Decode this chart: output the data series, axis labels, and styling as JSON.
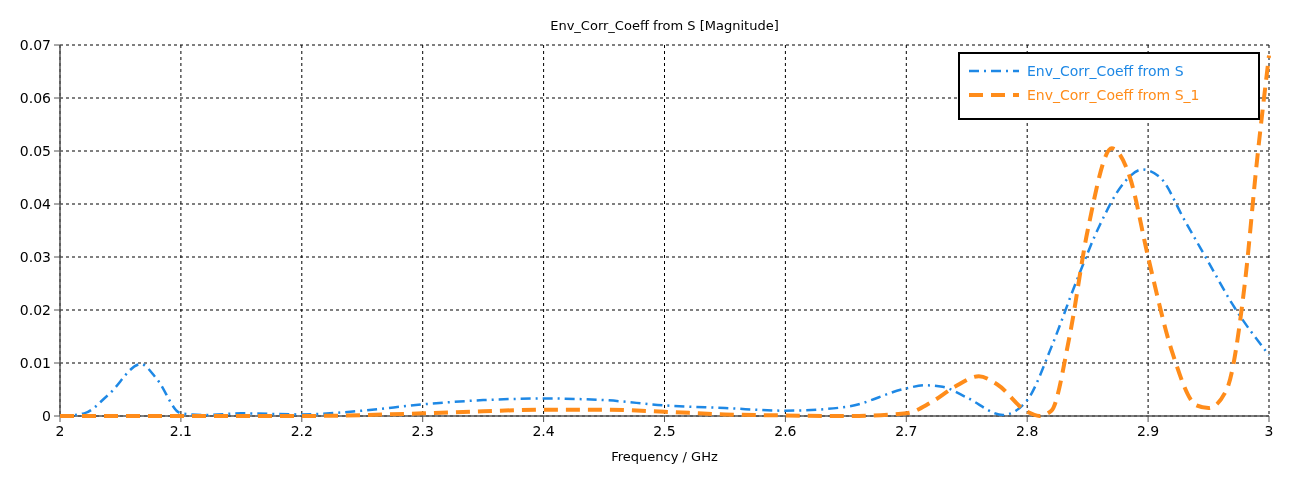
{
  "chart_data": {
    "type": "line",
    "title": "Env_Corr_Coeff from S [Magnitude]",
    "xlabel": "Frequency / GHz",
    "xlim": [
      2,
      3
    ],
    "xticks": [
      2,
      2.1,
      2.2,
      2.3,
      2.4,
      2.5,
      2.6,
      2.7,
      2.8,
      2.9,
      3
    ],
    "ylim": [
      0,
      0.07
    ],
    "yticks": [
      0,
      0.01,
      0.02,
      0.03,
      0.04,
      0.05,
      0.06,
      0.07
    ],
    "grid": true,
    "legend": "top right",
    "series": [
      {
        "name": "Env_Corr_Coeff from S",
        "color": "#1e88e5",
        "line_style": "dashdot",
        "x": [
          2,
          2.02,
          2.04,
          2.067,
          2.08,
          2.1,
          2.12,
          2.15,
          2.2,
          2.25,
          2.3,
          2.35,
          2.4,
          2.45,
          2.5,
          2.55,
          2.6,
          2.65,
          2.7,
          2.715,
          2.73,
          2.75,
          2.78,
          2.8,
          2.82,
          2.84,
          2.86,
          2.88,
          2.895,
          2.91,
          2.93,
          2.95,
          2.97,
          3
        ],
        "values": [
          0,
          0.0005,
          0.004,
          0.0098,
          0.007,
          0.0005,
          0.0002,
          0.0005,
          0.0003,
          0.001,
          0.0022,
          0.003,
          0.0033,
          0.003,
          0.002,
          0.0015,
          0.001,
          0.0017,
          0.0052,
          0.0058,
          0.0055,
          0.0035,
          0.0002,
          0.003,
          0.013,
          0.025,
          0.036,
          0.044,
          0.0465,
          0.045,
          0.037,
          0.029,
          0.021,
          0.0115
        ]
      },
      {
        "name": "Env_Corr_Coeff from S_1",
        "color": "#ff8c1a",
        "line_style": "dashed",
        "x": [
          2,
          2.1,
          2.2,
          2.3,
          2.35,
          2.4,
          2.45,
          2.5,
          2.55,
          2.6,
          2.65,
          2.7,
          2.72,
          2.74,
          2.76,
          2.775,
          2.8,
          2.81,
          2.82,
          2.835,
          2.85,
          2.87,
          2.885,
          2.9,
          2.92,
          2.94,
          2.95,
          2.965,
          2.98,
          2.99,
          3
        ],
        "values": [
          0,
          0,
          0,
          0.0005,
          0.0009,
          0.0012,
          0.0012,
          0.0008,
          0.0003,
          0.0001,
          0,
          0.0005,
          0.0025,
          0.0055,
          0.0075,
          0.006,
          0.0008,
          0,
          0.001,
          0.015,
          0.035,
          0.0505,
          0.045,
          0.03,
          0.012,
          0.002,
          0.0015,
          0.005,
          0.025,
          0.048,
          0.068
        ]
      }
    ]
  }
}
